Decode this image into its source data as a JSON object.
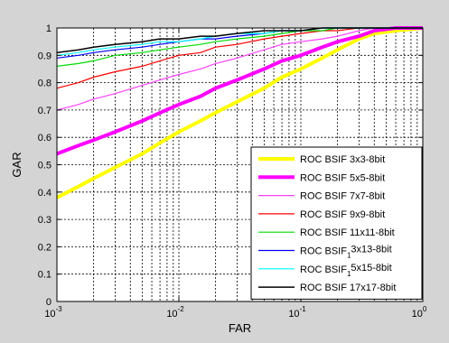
{
  "chart_data": {
    "type": "line",
    "title": "",
    "xlabel": "FAR",
    "ylabel": "GAR",
    "xscale": "log",
    "xlim": [
      0.001,
      1
    ],
    "ylim": [
      0,
      1
    ],
    "grid": true,
    "legend_position": "bottom-right",
    "x_ticks": [
      {
        "value": 0.001,
        "base": "10",
        "exp": "-3"
      },
      {
        "value": 0.01,
        "base": "10",
        "exp": "-2"
      },
      {
        "value": 0.1,
        "base": "10",
        "exp": "-1"
      },
      {
        "value": 1,
        "base": "10",
        "exp": "0"
      }
    ],
    "y_ticks": [
      {
        "value": 0,
        "label": "0"
      },
      {
        "value": 0.1,
        "label": "0.1"
      },
      {
        "value": 0.2,
        "label": "0.2"
      },
      {
        "value": 0.3,
        "label": "0.3"
      },
      {
        "value": 0.4,
        "label": "0.4"
      },
      {
        "value": 0.5,
        "label": "0.5"
      },
      {
        "value": 0.6,
        "label": "0.6"
      },
      {
        "value": 0.7,
        "label": "0.7"
      },
      {
        "value": 0.8,
        "label": "0.8"
      },
      {
        "value": 0.9,
        "label": "0.9"
      },
      {
        "value": 1,
        "label": "1"
      }
    ],
    "x": [
      0.001,
      0.0015,
      0.002,
      0.003,
      0.005,
      0.007,
      0.01,
      0.015,
      0.02,
      0.03,
      0.05,
      0.07,
      0.1,
      0.15,
      0.2,
      0.3,
      0.4,
      0.6,
      1.0
    ],
    "series": [
      {
        "name": "ROC BSIF 3x3-8bit",
        "color": "#ffff00",
        "width": 4,
        "values": [
          0.38,
          0.42,
          0.45,
          0.49,
          0.54,
          0.58,
          0.62,
          0.66,
          0.69,
          0.73,
          0.78,
          0.82,
          0.85,
          0.89,
          0.92,
          0.96,
          0.98,
          0.99,
          1.0
        ]
      },
      {
        "name": "ROC BSIF 5x5-8bit",
        "color": "#ff00ff",
        "width": 4,
        "values": [
          0.54,
          0.57,
          0.59,
          0.62,
          0.66,
          0.69,
          0.72,
          0.75,
          0.78,
          0.81,
          0.85,
          0.88,
          0.9,
          0.93,
          0.95,
          0.97,
          0.99,
          1.0,
          1.0
        ]
      },
      {
        "name": "ROC BSIF 7x7-8bit",
        "color": "#ff40ff",
        "width": 1.2,
        "values": [
          0.7,
          0.72,
          0.74,
          0.76,
          0.79,
          0.81,
          0.83,
          0.85,
          0.87,
          0.89,
          0.92,
          0.94,
          0.95,
          0.96,
          0.97,
          0.99,
          1.0,
          1.0,
          1.0
        ]
      },
      {
        "name": "ROC BSIF 9x9-8bit",
        "color": "#ff0000",
        "width": 1.2,
        "values": [
          0.78,
          0.8,
          0.82,
          0.84,
          0.86,
          0.88,
          0.9,
          0.91,
          0.93,
          0.94,
          0.96,
          0.97,
          0.98,
          0.99,
          0.99,
          1.0,
          1.0,
          1.0,
          1.0
        ]
      },
      {
        "name": "ROC BSIF 11x11-8bit",
        "color": "#00dd00",
        "width": 1.2,
        "values": [
          0.86,
          0.87,
          0.88,
          0.9,
          0.91,
          0.92,
          0.93,
          0.94,
          0.95,
          0.96,
          0.97,
          0.98,
          0.99,
          0.99,
          1.0,
          1.0,
          1.0,
          1.0,
          1.0
        ]
      },
      {
        "name": "ROC BSIF 13x13-8bit",
        "name_parts": [
          "ROC BSIF",
          "1",
          "3x13-8bit"
        ],
        "color": "#0000ff",
        "width": 1.2,
        "values": [
          0.89,
          0.9,
          0.91,
          0.92,
          0.93,
          0.94,
          0.95,
          0.96,
          0.96,
          0.97,
          0.98,
          0.99,
          0.99,
          1.0,
          1.0,
          1.0,
          1.0,
          1.0,
          1.0
        ]
      },
      {
        "name": "ROC BSIF 15x15-8bit",
        "name_parts": [
          "ROC BSIF",
          "1",
          "5x15-8bit"
        ],
        "color": "#00ffff",
        "width": 1.2,
        "values": [
          0.9,
          0.91,
          0.92,
          0.93,
          0.94,
          0.95,
          0.95,
          0.96,
          0.97,
          0.98,
          0.98,
          0.99,
          0.99,
          1.0,
          1.0,
          1.0,
          1.0,
          1.0,
          1.0
        ]
      },
      {
        "name": "ROC BSIF 17x17-8bit",
        "color": "#000000",
        "width": 1.5,
        "values": [
          0.91,
          0.92,
          0.93,
          0.94,
          0.95,
          0.96,
          0.96,
          0.97,
          0.97,
          0.98,
          0.99,
          0.99,
          0.99,
          1.0,
          1.0,
          1.0,
          1.0,
          1.0,
          1.0
        ]
      }
    ]
  }
}
